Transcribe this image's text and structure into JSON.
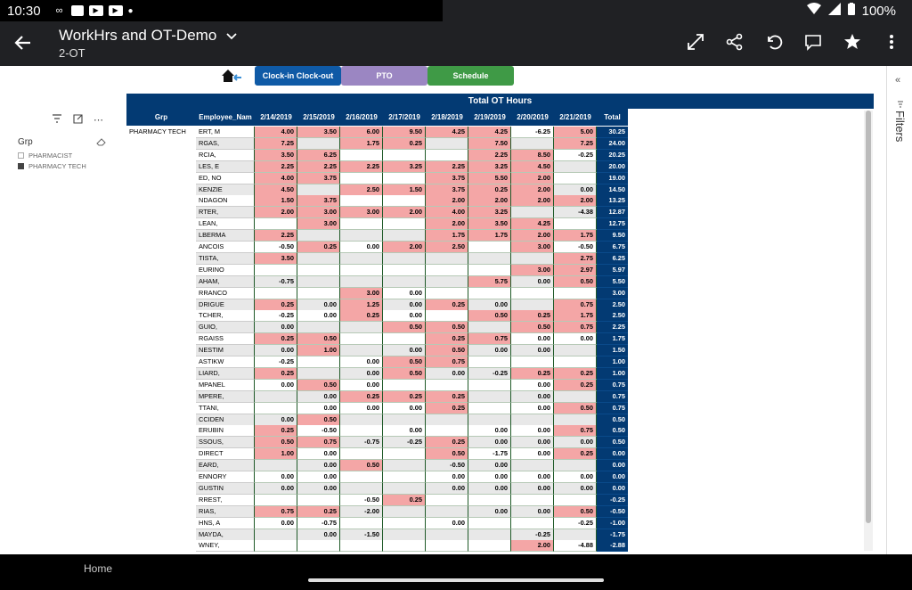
{
  "status": {
    "time": "10:30",
    "battery": "100%"
  },
  "app": {
    "title": "WorkHrs and OT-Demo",
    "subtitle": "2-OT"
  },
  "nav": {
    "buttons": [
      {
        "label": "Clock-in Clock-out",
        "color": "#0f5aa6"
      },
      {
        "label": "PTO",
        "color": "#9b86c2"
      },
      {
        "label": "Schedule",
        "color": "#3f9a46"
      }
    ]
  },
  "slicer": {
    "title": "Grp",
    "options": [
      {
        "label": "PHARMACIST",
        "checked": false
      },
      {
        "label": "PHARMACY TECH",
        "checked": true
      }
    ]
  },
  "filters_label": "Filters",
  "table": {
    "title": "Total OT Hours",
    "group": "PHARMACY TECH",
    "columns": [
      "Grp",
      "Employee_Nam",
      "2/14/2019",
      "2/15/2019",
      "2/16/2019",
      "2/17/2019",
      "2/18/2019",
      "2/19/2019",
      "2/20/2019",
      "2/21/2019",
      "Total"
    ],
    "rows": [
      {
        "name": "ERT, M",
        "vals": [
          "4.00",
          "3.50",
          "6.00",
          "9.50",
          "4.25",
          "4.25",
          "-6.25",
          "5.00"
        ],
        "total": "30.25"
      },
      {
        "name": "RGAS,",
        "vals": [
          "7.25",
          "",
          "1.75",
          "0.25",
          "",
          "7.50",
          "",
          "7.25"
        ],
        "total": "24.00"
      },
      {
        "name": "RCIA,",
        "vals": [
          "3.50",
          "6.25",
          "",
          "",
          "",
          "2.25",
          "8.50",
          "-0.25"
        ],
        "total": "20.25"
      },
      {
        "name": "LES, E",
        "vals": [
          "2.25",
          "2.25",
          "2.25",
          "3.25",
          "2.25",
          "3.25",
          "4.50",
          ""
        ],
        "total": "20.00"
      },
      {
        "name": "ED, NO",
        "vals": [
          "4.00",
          "3.75",
          "",
          "",
          "3.75",
          "5.50",
          "2.00",
          ""
        ],
        "total": "19.00"
      },
      {
        "name": "KENZIE",
        "vals": [
          "4.50",
          "",
          "2.50",
          "1.50",
          "3.75",
          "0.25",
          "2.00",
          "0.00"
        ],
        "total": "14.50"
      },
      {
        "name": "NDAGON",
        "vals": [
          "1.50",
          "3.75",
          "",
          "",
          "2.00",
          "2.00",
          "2.00",
          "2.00"
        ],
        "total": "13.25"
      },
      {
        "name": "RTER,",
        "vals": [
          "2.00",
          "3.00",
          "3.00",
          "2.00",
          "4.00",
          "3.25",
          "",
          "-4.38"
        ],
        "total": "12.87"
      },
      {
        "name": "LEAN,",
        "vals": [
          "",
          "3.00",
          "",
          "",
          "2.00",
          "3.50",
          "4.25",
          ""
        ],
        "total": "12.75"
      },
      {
        "name": "LBERMA",
        "vals": [
          "2.25",
          "",
          "",
          "",
          "1.75",
          "1.75",
          "2.00",
          "1.75"
        ],
        "total": "9.50"
      },
      {
        "name": "ANCOIS",
        "vals": [
          "-0.50",
          "0.25",
          "0.00",
          "2.00",
          "2.50",
          "",
          "3.00",
          "-0.50"
        ],
        "total": "6.75"
      },
      {
        "name": "TISTA,",
        "vals": [
          "3.50",
          "",
          "",
          "",
          "",
          "",
          "",
          "2.75"
        ],
        "total": "6.25"
      },
      {
        "name": "EURINO",
        "vals": [
          "",
          "",
          "",
          "",
          "",
          "",
          "3.00",
          "2.97"
        ],
        "total": "5.97"
      },
      {
        "name": "AHAM,",
        "vals": [
          "-0.75",
          "",
          "",
          "",
          "",
          "5.75",
          "0.00",
          "0.50"
        ],
        "total": "5.50"
      },
      {
        "name": "RRANCO",
        "vals": [
          "",
          "",
          "3.00",
          "0.00",
          "",
          "",
          "",
          ""
        ],
        "total": "3.00"
      },
      {
        "name": "DRIGUE",
        "vals": [
          "0.25",
          "0.00",
          "1.25",
          "0.00",
          "0.25",
          "0.00",
          "",
          "0.75"
        ],
        "total": "2.50"
      },
      {
        "name": "TCHER,",
        "vals": [
          "-0.25",
          "0.00",
          "0.25",
          "0.00",
          "",
          "0.50",
          "0.25",
          "1.75"
        ],
        "total": "2.50"
      },
      {
        "name": "GUIO,",
        "vals": [
          "0.00",
          "",
          "",
          "0.50",
          "0.50",
          "",
          "0.50",
          "0.75"
        ],
        "total": "2.25"
      },
      {
        "name": "RGAISS",
        "vals": [
          "0.25",
          "0.50",
          "",
          "",
          "0.25",
          "0.75",
          "0.00",
          "0.00"
        ],
        "total": "1.75"
      },
      {
        "name": "NESTIM",
        "vals": [
          "0.00",
          "1.00",
          "",
          "0.00",
          "0.50",
          "0.00",
          "0.00",
          ""
        ],
        "total": "1.50"
      },
      {
        "name": "ASTIKW",
        "vals": [
          "-0.25",
          "",
          "0.00",
          "0.50",
          "0.75",
          "",
          "",
          ""
        ],
        "total": "1.00"
      },
      {
        "name": "LIARD,",
        "vals": [
          "0.25",
          "",
          "0.00",
          "0.50",
          "0.00",
          "-0.25",
          "0.25",
          "0.25"
        ],
        "total": "1.00"
      },
      {
        "name": "MPANEL",
        "vals": [
          "0.00",
          "0.50",
          "0.00",
          "",
          "",
          "",
          "0.00",
          "0.25"
        ],
        "total": "0.75"
      },
      {
        "name": "MPERE,",
        "vals": [
          "",
          "0.00",
          "0.25",
          "0.25",
          "0.25",
          "",
          "0.00",
          ""
        ],
        "total": "0.75"
      },
      {
        "name": "TTANI,",
        "vals": [
          "",
          "0.00",
          "0.00",
          "0.00",
          "0.25",
          "",
          "0.00",
          "0.50"
        ],
        "total": "0.75"
      },
      {
        "name": "CCIDEN",
        "vals": [
          "0.00",
          "0.50",
          "",
          "",
          "",
          "",
          "",
          ""
        ],
        "total": "0.50"
      },
      {
        "name": "ERUBIN",
        "vals": [
          "0.25",
          "-0.50",
          "",
          "0.00",
          "",
          "0.00",
          "0.00",
          "0.75"
        ],
        "total": "0.50"
      },
      {
        "name": "SSOUS,",
        "vals": [
          "0.50",
          "0.75",
          "-0.75",
          "-0.25",
          "0.25",
          "0.00",
          "0.00",
          "0.00"
        ],
        "total": "0.50"
      },
      {
        "name": "DIRECT",
        "vals": [
          "1.00",
          "0.00",
          "",
          "",
          "0.50",
          "-1.75",
          "0.00",
          "0.25"
        ],
        "total": "0.00"
      },
      {
        "name": "EARD,",
        "vals": [
          "",
          "0.00",
          "0.50",
          "",
          "-0.50",
          "0.00",
          "",
          ""
        ],
        "total": "0.00"
      },
      {
        "name": "ENNORY",
        "vals": [
          "0.00",
          "0.00",
          "",
          "",
          "0.00",
          "0.00",
          "0.00",
          "0.00"
        ],
        "total": "0.00"
      },
      {
        "name": "GUSTIN",
        "vals": [
          "0.00",
          "0.00",
          "",
          "",
          "0.00",
          "0.00",
          "0.00",
          "0.00"
        ],
        "total": "0.00"
      },
      {
        "name": "RREST,",
        "vals": [
          "",
          "",
          "-0.50",
          "0.25",
          "",
          "",
          "",
          ""
        ],
        "total": "-0.25"
      },
      {
        "name": "RIAS,",
        "vals": [
          "0.75",
          "0.25",
          "-2.00",
          "",
          "",
          "0.00",
          "0.00",
          "0.50"
        ],
        "total": "-0.50"
      },
      {
        "name": "HNS, A",
        "vals": [
          "0.00",
          "-0.75",
          "",
          "",
          "0.00",
          "",
          "",
          "-0.25"
        ],
        "total": "-1.00"
      },
      {
        "name": "MAYDA,",
        "vals": [
          "",
          "0.00",
          "-1.50",
          "",
          "",
          "",
          "-0.25",
          ""
        ],
        "total": "-1.75"
      },
      {
        "name": "WNEY,",
        "vals": [
          "",
          "",
          "",
          "",
          "",
          "",
          "2.00",
          "-4.88"
        ],
        "total": "-2.88"
      }
    ]
  },
  "bottom": {
    "home_label": "Home"
  },
  "colors": {
    "pink": "#f4a6a6",
    "gray": "#e8e8e8",
    "navy": "#033a73"
  }
}
